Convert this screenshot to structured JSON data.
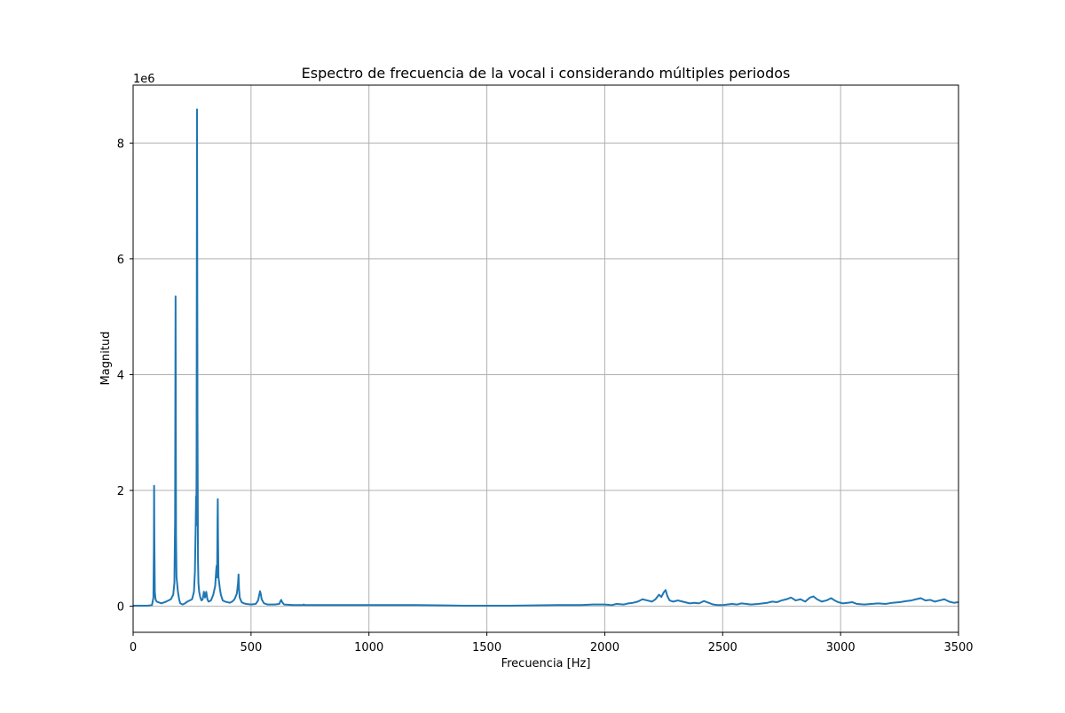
{
  "chart_data": {
    "type": "line",
    "title": "Espectro de frecuencia de la vocal i considerando múltiples periodos",
    "xlabel": "Frecuencia [Hz]",
    "ylabel": "Magnitud",
    "y_offset_label": "1e6",
    "y_multiplier": 1000000,
    "xlim": [
      0,
      3500
    ],
    "ylim": [
      -0.45,
      9.0
    ],
    "x_ticks": [
      0,
      500,
      1000,
      1500,
      2000,
      2500,
      3000,
      3500
    ],
    "y_ticks": [
      0,
      2,
      4,
      6,
      8
    ],
    "grid": true,
    "line_color": "#1f77b4",
    "series": [
      {
        "points": [
          [
            0,
            0.01
          ],
          [
            60,
            0.01
          ],
          [
            80,
            0.02
          ],
          [
            86,
            0.15
          ],
          [
            88,
            1.0
          ],
          [
            89,
            2.08
          ],
          [
            90,
            1.2
          ],
          [
            92,
            0.25
          ],
          [
            95,
            0.12
          ],
          [
            100,
            0.08
          ],
          [
            120,
            0.05
          ],
          [
            140,
            0.08
          ],
          [
            160,
            0.12
          ],
          [
            170,
            0.2
          ],
          [
            175,
            0.4
          ],
          [
            178,
            1.5
          ],
          [
            179,
            3.5
          ],
          [
            180,
            5.35
          ],
          [
            181,
            3.2
          ],
          [
            182,
            1.2
          ],
          [
            184,
            0.5
          ],
          [
            186,
            0.42
          ],
          [
            190,
            0.25
          ],
          [
            195,
            0.12
          ],
          [
            200,
            0.05
          ],
          [
            210,
            0.03
          ],
          [
            220,
            0.05
          ],
          [
            230,
            0.08
          ],
          [
            240,
            0.1
          ],
          [
            250,
            0.12
          ],
          [
            258,
            0.25
          ],
          [
            262,
            0.6
          ],
          [
            265,
            1.3
          ],
          [
            267,
            1.9
          ],
          [
            268,
            1.4
          ],
          [
            269,
            2.5
          ],
          [
            270,
            5.5
          ],
          [
            271,
            8.58
          ],
          [
            272,
            6.0
          ],
          [
            273,
            3.2
          ],
          [
            275,
            0.8
          ],
          [
            277,
            0.4
          ],
          [
            280,
            0.25
          ],
          [
            285,
            0.15
          ],
          [
            290,
            0.1
          ],
          [
            295,
            0.12
          ],
          [
            300,
            0.25
          ],
          [
            305,
            0.15
          ],
          [
            310,
            0.25
          ],
          [
            315,
            0.12
          ],
          [
            320,
            0.08
          ],
          [
            330,
            0.1
          ],
          [
            340,
            0.2
          ],
          [
            348,
            0.35
          ],
          [
            352,
            0.6
          ],
          [
            354,
            0.7
          ],
          [
            356,
            0.5
          ],
          [
            358,
            1.5
          ],
          [
            359,
            1.85
          ],
          [
            360,
            1.2
          ],
          [
            362,
            0.5
          ],
          [
            365,
            0.4
          ],
          [
            368,
            0.3
          ],
          [
            372,
            0.2
          ],
          [
            380,
            0.1
          ],
          [
            390,
            0.08
          ],
          [
            400,
            0.07
          ],
          [
            410,
            0.06
          ],
          [
            420,
            0.08
          ],
          [
            430,
            0.12
          ],
          [
            440,
            0.22
          ],
          [
            445,
            0.4
          ],
          [
            447,
            0.55
          ],
          [
            449,
            0.3
          ],
          [
            452,
            0.15
          ],
          [
            460,
            0.07
          ],
          [
            470,
            0.05
          ],
          [
            480,
            0.04
          ],
          [
            500,
            0.03
          ],
          [
            520,
            0.04
          ],
          [
            530,
            0.1
          ],
          [
            535,
            0.2
          ],
          [
            538,
            0.26
          ],
          [
            541,
            0.22
          ],
          [
            545,
            0.12
          ],
          [
            555,
            0.05
          ],
          [
            570,
            0.03
          ],
          [
            600,
            0.03
          ],
          [
            620,
            0.04
          ],
          [
            625,
            0.09
          ],
          [
            628,
            0.11
          ],
          [
            632,
            0.07
          ],
          [
            640,
            0.03
          ],
          [
            680,
            0.02
          ],
          [
            720,
            0.02
          ],
          [
            723,
            0.03
          ],
          [
            728,
            0.02
          ],
          [
            800,
            0.02
          ],
          [
            900,
            0.02
          ],
          [
            1000,
            0.02
          ],
          [
            1200,
            0.02
          ],
          [
            1400,
            0.01
          ],
          [
            1600,
            0.01
          ],
          [
            1800,
            0.02
          ],
          [
            1900,
            0.02
          ],
          [
            1950,
            0.03
          ],
          [
            2000,
            0.03
          ],
          [
            2030,
            0.02
          ],
          [
            2050,
            0.04
          ],
          [
            2080,
            0.03
          ],
          [
            2100,
            0.05
          ],
          [
            2120,
            0.06
          ],
          [
            2140,
            0.08
          ],
          [
            2160,
            0.12
          ],
          [
            2180,
            0.1
          ],
          [
            2200,
            0.08
          ],
          [
            2215,
            0.12
          ],
          [
            2230,
            0.2
          ],
          [
            2240,
            0.16
          ],
          [
            2250,
            0.24
          ],
          [
            2258,
            0.28
          ],
          [
            2265,
            0.18
          ],
          [
            2275,
            0.1
          ],
          [
            2290,
            0.08
          ],
          [
            2310,
            0.1
          ],
          [
            2330,
            0.08
          ],
          [
            2360,
            0.05
          ],
          [
            2380,
            0.06
          ],
          [
            2400,
            0.05
          ],
          [
            2420,
            0.09
          ],
          [
            2440,
            0.06
          ],
          [
            2460,
            0.03
          ],
          [
            2480,
            0.02
          ],
          [
            2500,
            0.02
          ],
          [
            2520,
            0.03
          ],
          [
            2540,
            0.04
          ],
          [
            2560,
            0.03
          ],
          [
            2580,
            0.05
          ],
          [
            2600,
            0.04
          ],
          [
            2620,
            0.03
          ],
          [
            2650,
            0.04
          ],
          [
            2670,
            0.05
          ],
          [
            2690,
            0.06
          ],
          [
            2710,
            0.08
          ],
          [
            2730,
            0.07
          ],
          [
            2750,
            0.1
          ],
          [
            2770,
            0.12
          ],
          [
            2790,
            0.15
          ],
          [
            2810,
            0.1
          ],
          [
            2830,
            0.12
          ],
          [
            2850,
            0.08
          ],
          [
            2870,
            0.15
          ],
          [
            2885,
            0.17
          ],
          [
            2900,
            0.12
          ],
          [
            2920,
            0.08
          ],
          [
            2940,
            0.1
          ],
          [
            2960,
            0.14
          ],
          [
            2975,
            0.1
          ],
          [
            2990,
            0.07
          ],
          [
            3010,
            0.05
          ],
          [
            3030,
            0.06
          ],
          [
            3050,
            0.07
          ],
          [
            3070,
            0.04
          ],
          [
            3100,
            0.03
          ],
          [
            3130,
            0.04
          ],
          [
            3160,
            0.05
          ],
          [
            3190,
            0.04
          ],
          [
            3220,
            0.06
          ],
          [
            3250,
            0.07
          ],
          [
            3280,
            0.09
          ],
          [
            3300,
            0.1
          ],
          [
            3320,
            0.12
          ],
          [
            3340,
            0.14
          ],
          [
            3360,
            0.1
          ],
          [
            3380,
            0.11
          ],
          [
            3400,
            0.08
          ],
          [
            3420,
            0.1
          ],
          [
            3440,
            0.12
          ],
          [
            3460,
            0.08
          ],
          [
            3480,
            0.06
          ],
          [
            3500,
            0.07
          ]
        ]
      }
    ]
  }
}
